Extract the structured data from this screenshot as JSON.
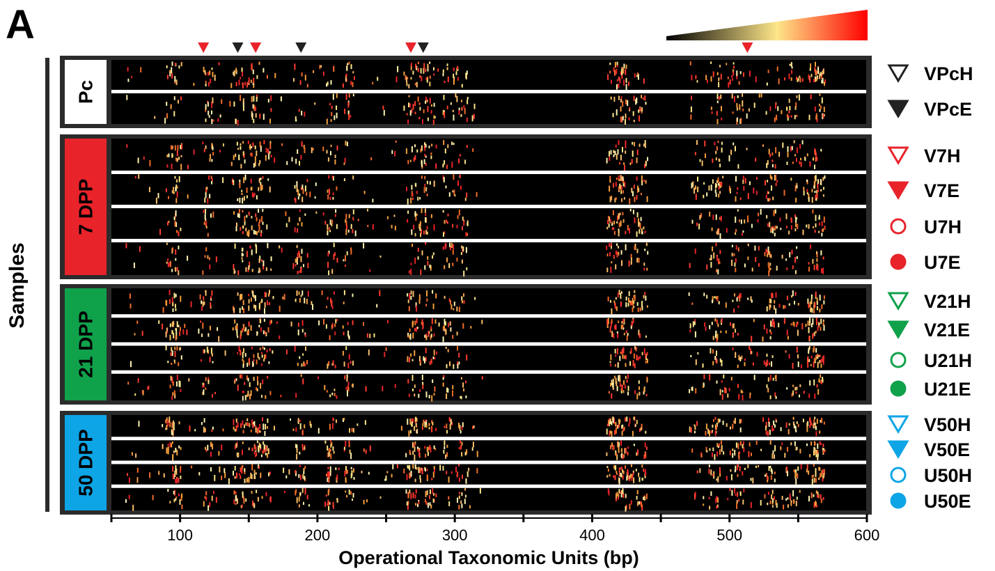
{
  "panel_letter": "A",
  "colors": {
    "heat_low": "#000000",
    "heat_mid": "#fde68a",
    "heat_high": "#ff0000",
    "pc": "#ffffff",
    "dpp7": "#e8232a",
    "dpp21": "#10a14b",
    "dpp50": "#0ea5e6",
    "frame": "#2b2b2b"
  },
  "chart_data": {
    "type": "heatmap",
    "xlabel": "Operational Taxonomic Units (bp)",
    "ylabel": "Samples",
    "xlim": [
      50,
      600
    ],
    "x_ticks": [
      100,
      200,
      300,
      400,
      500,
      600
    ],
    "color_scale": [
      "#000000",
      "#fde68a",
      "#ff0000"
    ],
    "markers": [
      {
        "x": 117,
        "color": "red"
      },
      {
        "x": 142,
        "color": "black"
      },
      {
        "x": 155,
        "color": "red"
      },
      {
        "x": 188,
        "color": "black"
      },
      {
        "x": 268,
        "color": "red"
      },
      {
        "x": 277,
        "color": "black"
      },
      {
        "x": 513,
        "color": "red"
      }
    ],
    "groups": [
      {
        "label": "Pc",
        "color": "#ffffff",
        "text_color": "#000000",
        "rows": [
          "VPcH",
          "VPcE"
        ]
      },
      {
        "label": "7 DPP",
        "color": "#e8232a",
        "text_color": "#000000",
        "rows": [
          "V7H",
          "V7E",
          "U7H",
          "U7E"
        ]
      },
      {
        "label": "21 DPP",
        "color": "#10a14b",
        "text_color": "#000000",
        "rows": [
          "V21H",
          "V21E",
          "U21H",
          "U21E"
        ]
      },
      {
        "label": "50 DPP",
        "color": "#0ea5e6",
        "text_color": "#000000",
        "rows": [
          "V50H",
          "V50E",
          "U50H",
          "U50E"
        ]
      }
    ],
    "legend": [
      {
        "label": "VPcH",
        "shape": "triangle-open",
        "color": "#222222"
      },
      {
        "label": "VPcE",
        "shape": "triangle-filled",
        "color": "#222222"
      },
      {
        "label": "V7H",
        "shape": "triangle-open",
        "color": "#e8232a"
      },
      {
        "label": "V7E",
        "shape": "triangle-filled",
        "color": "#e8232a"
      },
      {
        "label": "U7H",
        "shape": "circle-open",
        "color": "#e8232a"
      },
      {
        "label": "U7E",
        "shape": "circle-filled",
        "color": "#e8232a"
      },
      {
        "label": "V21H",
        "shape": "triangle-open",
        "color": "#10a14b"
      },
      {
        "label": "V21E",
        "shape": "triangle-filled",
        "color": "#10a14b"
      },
      {
        "label": "U21H",
        "shape": "circle-open",
        "color": "#10a14b"
      },
      {
        "label": "U21E",
        "shape": "circle-filled",
        "color": "#10a14b"
      },
      {
        "label": "V50H",
        "shape": "triangle-open",
        "color": "#0ea5e6"
      },
      {
        "label": "V50E",
        "shape": "triangle-filled",
        "color": "#0ea5e6"
      },
      {
        "label": "U50H",
        "shape": "circle-open",
        "color": "#0ea5e6"
      },
      {
        "label": "U50E",
        "shape": "circle-filled",
        "color": "#0ea5e6"
      }
    ],
    "hotspots_bp": [
      93,
      97,
      120,
      142,
      148,
      155,
      162,
      187,
      210,
      222,
      268,
      276,
      282,
      295,
      305,
      420,
      490,
      505,
      530,
      545,
      560,
      565
    ]
  }
}
